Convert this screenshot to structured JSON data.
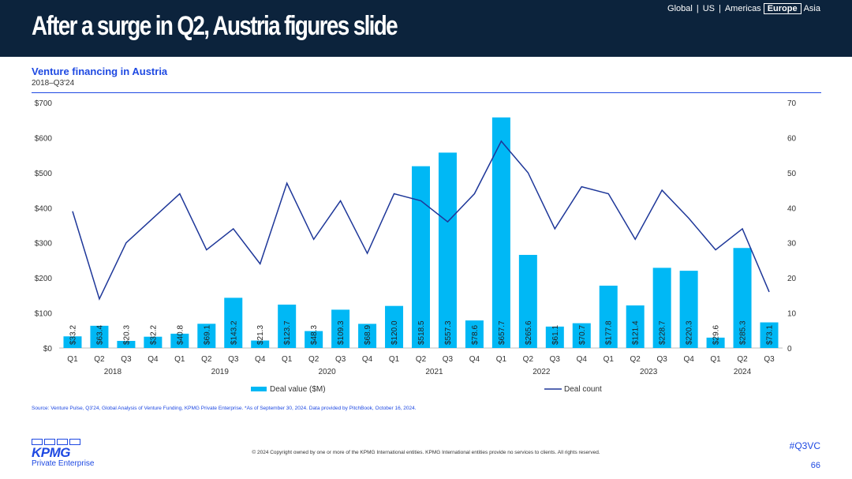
{
  "header": {
    "title": "After a surge in Q2, Austria figures slide",
    "nav": [
      "Global",
      "US",
      "Americas",
      "Europe",
      "Asia"
    ],
    "nav_active": "Europe",
    "nav_separator": "|"
  },
  "chart_title": "Venture financing in Austria",
  "chart_subtitle": "2018–Q3'24",
  "source": "Source: Venture Pulse, Q3'24, Global Analysis of Venture Funding, KPMG Private Enterprise. *As of September 30, 2024. Data provided by PitchBook, October 16, 2024.",
  "footer": {
    "copyright": "© 2024 Copyright owned by one or more of the KPMG International entities. KPMG International entities provide no services to clients. All rights reserved.",
    "hashtag": "#Q3VC",
    "page_number": "66",
    "logo_text": "KPMG",
    "logo_subtext": "Private Enterprise"
  },
  "colors": {
    "bar": "#00b8f5",
    "line": "#1e3799",
    "header_bg": "#0c233c",
    "accent": "#1e49e2"
  },
  "chart_data": {
    "type": "bar",
    "quarters": [
      "Q1",
      "Q2",
      "Q3",
      "Q4",
      "Q1",
      "Q2",
      "Q3",
      "Q4",
      "Q1",
      "Q2",
      "Q3",
      "Q4",
      "Q1",
      "Q2",
      "Q3",
      "Q4",
      "Q1",
      "Q2",
      "Q3",
      "Q4",
      "Q1",
      "Q2",
      "Q3",
      "Q4",
      "Q1",
      "Q2",
      "Q3"
    ],
    "years": [
      {
        "label": "2018",
        "start": 0,
        "count": 4
      },
      {
        "label": "2019",
        "start": 4,
        "count": 4
      },
      {
        "label": "2020",
        "start": 8,
        "count": 4
      },
      {
        "label": "2021",
        "start": 12,
        "count": 4
      },
      {
        "label": "2022",
        "start": 16,
        "count": 4
      },
      {
        "label": "2023",
        "start": 20,
        "count": 4
      },
      {
        "label": "2024",
        "start": 24,
        "count": 3
      }
    ],
    "series": [
      {
        "name": "Deal value ($M)",
        "type": "bar",
        "axis": "left",
        "values": [
          33.2,
          63.4,
          20.3,
          32.2,
          40.8,
          69.1,
          143.2,
          21.3,
          123.7,
          48.3,
          109.3,
          68.9,
          120.0,
          518.5,
          557.3,
          78.6,
          657.7,
          265.6,
          61.1,
          70.7,
          177.8,
          121.4,
          228.7,
          220.3,
          29.6,
          285.3,
          73.1
        ],
        "labels": [
          "$33.2",
          "$63.4",
          "$20.3",
          "$32.2",
          "$40.8",
          "$69.1",
          "$143.2",
          "$21.3",
          "$123.7",
          "$48.3",
          "$109.3",
          "$68.9",
          "$120.0",
          "$518.5",
          "$557.3",
          "$78.6",
          "$657.7",
          "$265.6",
          "$61.1",
          "$70.7",
          "$177.8",
          "$121.4",
          "$228.7",
          "$220.3",
          "$29.6",
          "$285.3",
          "$73.1"
        ]
      },
      {
        "name": "Deal count",
        "type": "line",
        "axis": "right",
        "values": [
          39,
          14,
          30,
          37,
          44,
          28,
          34,
          24,
          47,
          31,
          42,
          27,
          44,
          42,
          36,
          44,
          59,
          50,
          34,
          46,
          44,
          31,
          45,
          37,
          28,
          34,
          16
        ]
      }
    ],
    "y_left": {
      "ticks": [
        "$0",
        "$100",
        "$200",
        "$300",
        "$400",
        "$500",
        "$600",
        "$700"
      ],
      "range": [
        0,
        700
      ]
    },
    "y_right": {
      "ticks": [
        "0",
        "10",
        "20",
        "30",
        "40",
        "50",
        "60",
        "70"
      ],
      "range": [
        0,
        70
      ]
    },
    "legend_position": "bottom"
  }
}
